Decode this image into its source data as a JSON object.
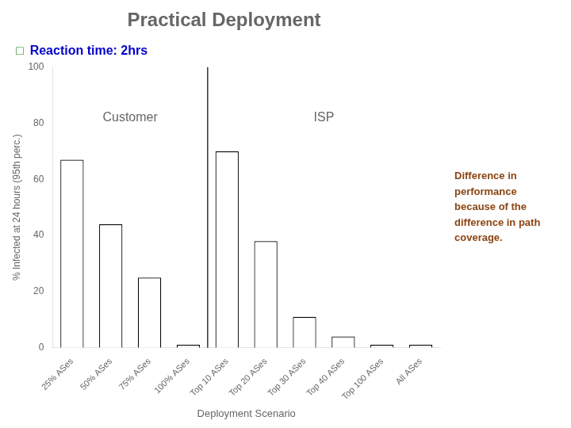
{
  "chart_data": {
    "type": "bar",
    "title": "Practical Deployment",
    "xlabel": "Deployment Scenario",
    "ylabel": "% Infected at 24 hours (95th perc.)",
    "categories": [
      "25% ASes",
      "50% ASes",
      "75% ASes",
      "100% ASes",
      "Top 10 ASes",
      "Top 20 ASes",
      "Top 30 ASes",
      "Top 40 ASes",
      "Top 100 ASes",
      "All ASes"
    ],
    "values": [
      67,
      44,
      25,
      1,
      70,
      38,
      11,
      4,
      1,
      1
    ],
    "color": "white",
    "ylim": [
      0,
      100
    ],
    "yticks": [
      0,
      20,
      40,
      60,
      80,
      100
    ],
    "grid": false,
    "annotations": [
      {
        "text": "Customer"
      },
      {
        "text": "ISP"
      },
      {
        "text": "□",
        "color": "#228B22"
      },
      {
        "text": "Reaction time: 2hrs",
        "color": "#0000CD"
      },
      {
        "text": "Difference in\nperformance\nbecause of the\ndifference in path\ncoverage.",
        "color": "#8B4513"
      }
    ]
  }
}
